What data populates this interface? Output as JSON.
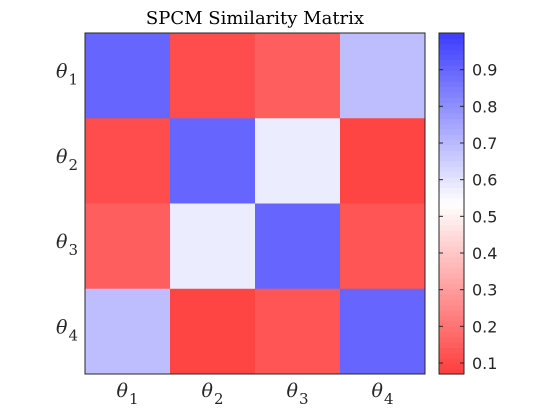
{
  "chart_data": {
    "type": "heatmap",
    "title": "SPCM Similarity Matrix",
    "row_labels": [
      {
        "symbol": "θ",
        "sub": "1"
      },
      {
        "symbol": "θ",
        "sub": "2"
      },
      {
        "symbol": "θ",
        "sub": "3"
      },
      {
        "symbol": "θ",
        "sub": "4"
      }
    ],
    "col_labels": [
      {
        "symbol": "θ",
        "sub": "1"
      },
      {
        "symbol": "θ",
        "sub": "2"
      },
      {
        "symbol": "θ",
        "sub": "3"
      },
      {
        "symbol": "θ",
        "sub": "4"
      }
    ],
    "values": [
      [
        0.9,
        0.11,
        0.15,
        0.69
      ],
      [
        0.11,
        0.9,
        0.58,
        0.09
      ],
      [
        0.15,
        0.58,
        0.9,
        0.13
      ],
      [
        0.69,
        0.09,
        0.13,
        0.9
      ]
    ],
    "colorbar": {
      "range": [
        0.07,
        1.0
      ],
      "ticks": [
        "0.1",
        "0.2",
        "0.3",
        "0.4",
        "0.5",
        "0.6",
        "0.7",
        "0.8",
        "0.9"
      ],
      "colormap": "red-white-blue",
      "low_color": "#ff3c3c",
      "mid_color": "#ffffff",
      "high_color": "#3c3cff"
    }
  }
}
